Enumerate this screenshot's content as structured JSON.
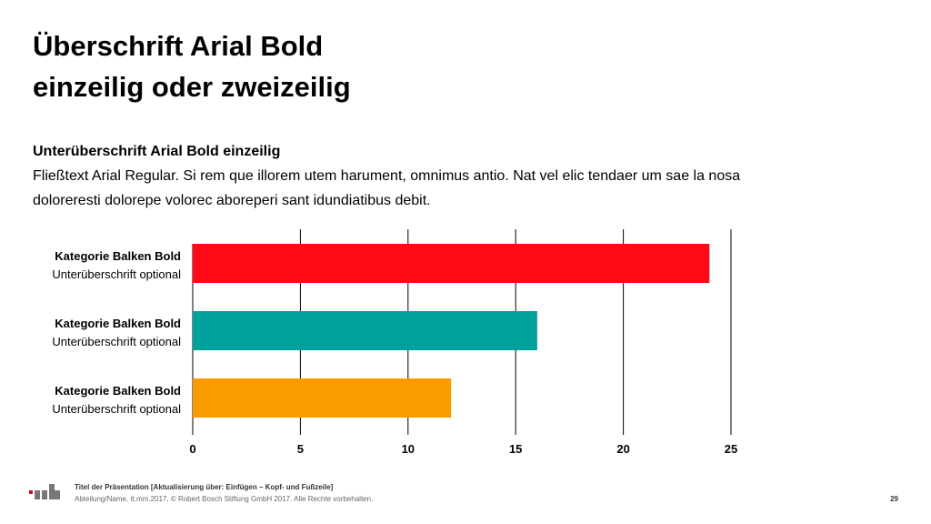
{
  "header": {
    "title_line1": "Überschrift Arial Bold",
    "title_line2": "einzeilig oder zweizeilig",
    "subtitle": "Unterüberschrift Arial Bold einzeilig",
    "body_text": "Fließtext Arial Regular. Si rem que illorem utem harument, omnimus antio. Nat vel elic tendaer um sae la nosa dolorerestі dolorepe volorec aboreperi sant idundiatibus debit."
  },
  "chart_data": {
    "type": "bar",
    "orientation": "horizontal",
    "categories": [
      {
        "label": "Kategorie Balken Bold",
        "sublabel": "Unterüberschrift optional"
      },
      {
        "label": "Kategorie Balken Bold",
        "sublabel": "Unterüberschrift optional"
      },
      {
        "label": "Kategorie Balken Bold",
        "sublabel": "Unterüberschrift optional"
      }
    ],
    "values": [
      24,
      16,
      12
    ],
    "colors": [
      "#ff0a17",
      "#00a19a",
      "#fa9b00"
    ],
    "xlim": [
      0,
      25
    ],
    "xticks": [
      "0",
      "5",
      "10",
      "15",
      "20",
      "25"
    ],
    "grid": true,
    "title": "",
    "xlabel": "",
    "ylabel": ""
  },
  "footer": {
    "logo_icon": "rb-logo-icon",
    "presentation_title": "Titel der Präsentation [Aktualisierung über: Einfügen – Kopf- und Fußzeile]",
    "meta": "Abteilung/Name, tt.mm.2017, © Robert Bosch Stiftung GmbH 2017. Alle Rechte vorbehalten.",
    "page_number": "29"
  }
}
